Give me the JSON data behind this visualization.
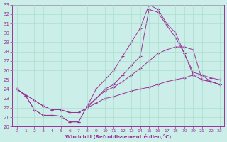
{
  "xlabel": "Windchill (Refroidissement éolien,°C)",
  "xlim": [
    -0.5,
    23.5
  ],
  "ylim": [
    20,
    33
  ],
  "xticks": [
    0,
    1,
    2,
    3,
    4,
    5,
    6,
    7,
    8,
    9,
    10,
    11,
    12,
    13,
    14,
    15,
    16,
    17,
    18,
    19,
    20,
    21,
    22,
    23
  ],
  "yticks": [
    20,
    21,
    22,
    23,
    24,
    25,
    26,
    27,
    28,
    29,
    30,
    31,
    32,
    33
  ],
  "line_color": "#993399",
  "bg_color": "#cceee8",
  "grid_color": "#aaddcc",
  "lines": [
    {
      "x": [
        0,
        1,
        2,
        3,
        4,
        5,
        6,
        7,
        8,
        9,
        10,
        11,
        12,
        13,
        14,
        15,
        16,
        17,
        18,
        19,
        20,
        21,
        22,
        23
      ],
      "y": [
        24.0,
        23.3,
        21.8,
        21.2,
        21.2,
        21.1,
        20.5,
        20.5,
        22.2,
        24.0,
        25.0,
        26.0,
        27.5,
        29.0,
        30.5,
        33.0,
        32.5,
        31.0,
        30.0,
        27.8,
        25.5,
        25.0,
        24.8,
        24.5
      ]
    },
    {
      "x": [
        0,
        1,
        2,
        3,
        4,
        5,
        6,
        7,
        8,
        9,
        10,
        11,
        12,
        13,
        14,
        15,
        16,
        17,
        18,
        19,
        20,
        21,
        22,
        23
      ],
      "y": [
        24.0,
        23.3,
        21.8,
        21.2,
        21.2,
        21.1,
        20.5,
        20.5,
        22.2,
        23.0,
        24.0,
        24.5,
        25.5,
        26.5,
        27.5,
        32.5,
        32.2,
        30.8,
        29.5,
        27.8,
        25.8,
        25.5,
        25.2,
        25.0
      ]
    },
    {
      "x": [
        0,
        2,
        3,
        4,
        5,
        6,
        7,
        8,
        9,
        10,
        11,
        12,
        13,
        14,
        15,
        16,
        17,
        18,
        19,
        20,
        21,
        22,
        23
      ],
      "y": [
        24.0,
        22.8,
        22.2,
        21.8,
        21.8,
        21.5,
        21.5,
        22.0,
        23.0,
        23.8,
        24.2,
        24.8,
        25.5,
        26.2,
        27.0,
        27.8,
        28.2,
        28.5,
        28.5,
        28.2,
        25.0,
        24.8,
        24.5
      ]
    },
    {
      "x": [
        0,
        2,
        3,
        4,
        5,
        6,
        7,
        8,
        9,
        10,
        11,
        12,
        13,
        14,
        15,
        16,
        17,
        18,
        19,
        20,
        21,
        22,
        23
      ],
      "y": [
        24.0,
        22.8,
        22.2,
        21.8,
        21.8,
        21.5,
        21.5,
        22.0,
        22.5,
        23.0,
        23.2,
        23.5,
        23.8,
        24.0,
        24.2,
        24.5,
        24.8,
        25.0,
        25.2,
        25.5,
        25.5,
        24.8,
        24.5
      ]
    }
  ]
}
